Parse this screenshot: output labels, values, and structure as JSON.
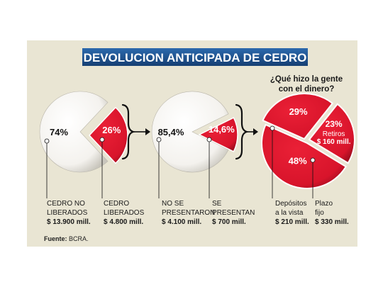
{
  "title": "DEVOLUCION ANTICIPADA DE CEDRO",
  "question": [
    "¿Qué hizo la gente",
    "con el dinero?"
  ],
  "colors": {
    "background": "#e9e5d3",
    "red": "#d8142b",
    "white": "#ffffff",
    "title_band": "#1d4f8c"
  },
  "chart_data": [
    {
      "type": "pie",
      "slices": [
        {
          "label": "CEDRO NO LIBERADOS",
          "value": 74,
          "display": "74%",
          "amount": "$ 13.900 mill."
        },
        {
          "label": "CEDRO LIBERADOS",
          "value": 26,
          "display": "26%",
          "amount": "$ 4.800 mill."
        }
      ]
    },
    {
      "type": "pie",
      "slices": [
        {
          "label": "NO SE PRESENTARON",
          "value": 85.4,
          "display": "85,4%",
          "amount": "$ 4.100 mill."
        },
        {
          "label": "SE PRESENTAN",
          "value": 14.6,
          "display": "14,6%",
          "amount": "$ 700 mill."
        }
      ]
    },
    {
      "type": "pie",
      "slices": [
        {
          "label": "Depósitos a la vista",
          "value": 29,
          "display": "29%",
          "amount": "$ 210 mill."
        },
        {
          "label": "Retiros",
          "value": 23,
          "display": "23%",
          "amount": "$ 160 mill."
        },
        {
          "label": "Plazo fijo",
          "value": 48,
          "display": "48%",
          "amount": "$ 330 mill."
        }
      ]
    }
  ],
  "labels": [
    {
      "lines": [
        "CEDRO NO",
        "LIBERADOS"
      ],
      "amount": "$ 13.900 mill."
    },
    {
      "lines": [
        "CEDRO",
        "LIBERADOS"
      ],
      "amount": "$ 4.800 mill."
    },
    {
      "lines": [
        "NO SE",
        "PRESENTARON"
      ],
      "amount": "$ 4.100 mill."
    },
    {
      "lines": [
        "SE",
        "PRESENTAN"
      ],
      "amount": "$ 700 mill."
    },
    {
      "lines": [
        "Depósitos",
        "a la vista"
      ],
      "amount": "$ 210 mill."
    },
    {
      "lines": [
        "Plazo",
        "fijo"
      ],
      "amount": "$ 330 mill."
    }
  ],
  "source": {
    "prefix": "Fuente:",
    "text": "BCRA."
  }
}
